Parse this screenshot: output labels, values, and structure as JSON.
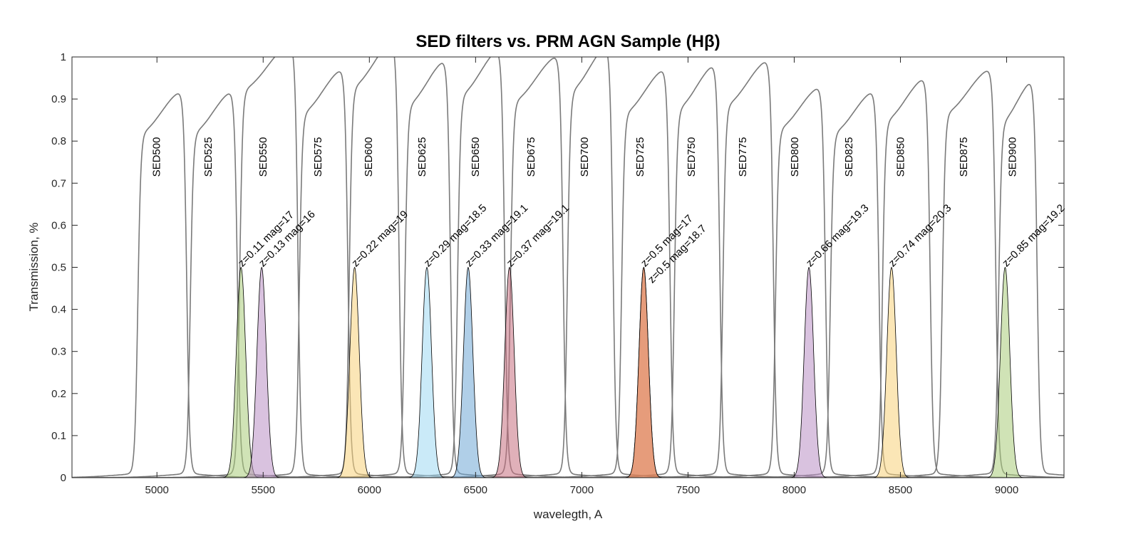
{
  "chart_data": {
    "type": "line",
    "title": "SED filters vs. PRM AGN Sample (Hβ)",
    "xlabel": "waveleth, A",
    "xlabel_text": "wavelegth, A",
    "ylabel": "Transmission, %",
    "xlim": [
      4600,
      9270
    ],
    "ylim": [
      0,
      1
    ],
    "xticks": [
      5000,
      5500,
      6000,
      6500,
      7000,
      7500,
      8000,
      8500,
      9000
    ],
    "yticks": [
      0,
      0.1,
      0.2,
      0.3,
      0.4,
      0.5,
      0.6,
      0.7,
      0.8,
      0.9,
      1
    ],
    "ytick_labels": [
      "0",
      "0.1",
      "0.2",
      "0.3",
      "0.4",
      "0.5",
      "0.6",
      "0.7",
      "0.8",
      "0.9",
      "1"
    ],
    "line_rest_wavelength": 4861,
    "filter_color": "#7a7a7a",
    "filters": [
      {
        "name": "SED500",
        "lo": 4910,
        "hi": 5140,
        "peak": 0.86
      },
      {
        "name": "SED525",
        "lo": 5157,
        "hi": 5379,
        "peak": 0.86
      },
      {
        "name": "SED550",
        "lo": 5389,
        "hi": 5664,
        "peak": 0.97
      },
      {
        "name": "SED575",
        "lo": 5670,
        "hi": 5899,
        "peak": 0.91
      },
      {
        "name": "SED600",
        "lo": 5905,
        "hi": 6140,
        "peak": 0.975
      },
      {
        "name": "SED625",
        "lo": 6167,
        "hi": 6382,
        "peak": 0.93
      },
      {
        "name": "SED650",
        "lo": 6415,
        "hi": 6637,
        "peak": 0.955
      },
      {
        "name": "SED675",
        "lo": 6664,
        "hi": 6912,
        "peak": 0.94
      },
      {
        "name": "SED700",
        "lo": 6932,
        "hi": 7147,
        "peak": 0.965
      },
      {
        "name": "SED725",
        "lo": 7187,
        "hi": 7415,
        "peak": 0.91
      },
      {
        "name": "SED750",
        "lo": 7436,
        "hi": 7650,
        "peak": 0.92
      },
      {
        "name": "SED775",
        "lo": 7664,
        "hi": 7902,
        "peak": 0.93
      },
      {
        "name": "SED800",
        "lo": 7912,
        "hi": 8147,
        "peak": 0.87
      },
      {
        "name": "SED825",
        "lo": 8170,
        "hi": 8399,
        "peak": 0.86
      },
      {
        "name": "SED850",
        "lo": 8415,
        "hi": 8640,
        "peak": 0.89
      },
      {
        "name": "SED875",
        "lo": 8697,
        "hi": 8949,
        "peak": 0.91
      },
      {
        "name": "SED900",
        "lo": 8962,
        "hi": 9144,
        "peak": 0.885
      }
    ],
    "objects": [
      {
        "z": 0.11,
        "mag": 17,
        "label": "z=0.11 mag=17",
        "peak": 0.5,
        "color": "#a9cc7a"
      },
      {
        "z": 0.13,
        "mag": 16,
        "label": "z=0.13 mag=16",
        "peak": 0.5,
        "color": "#b98fc4"
      },
      {
        "z": 0.22,
        "mag": 19,
        "label": "z=0.22 mag=19",
        "peak": 0.5,
        "color": "#f7d27a"
      },
      {
        "z": 0.29,
        "mag": 18.5,
        "label": "z=0.29 mag=18.5",
        "peak": 0.5,
        "color": "#9fd8f2"
      },
      {
        "z": 0.33,
        "mag": 19.1,
        "label": "z=0.33 mag=19.1",
        "peak": 0.5,
        "color": "#6fa8d6"
      },
      {
        "z": 0.37,
        "mag": 19.1,
        "label": "z=0.37 mag=19.1",
        "peak": 0.5,
        "color": "#c76f80"
      },
      {
        "z": 0.5,
        "mag": 17,
        "label": "z=0.5 mag=17",
        "peak": 0.5,
        "color": "#e0845a"
      },
      {
        "z": 0.5,
        "mag": 18.7,
        "label": "z=0.5 mag=18.7",
        "peak": 0.5,
        "color": "#e0845a"
      },
      {
        "z": 0.66,
        "mag": 19.3,
        "label": "z=0.66 mag=19.3",
        "peak": 0.5,
        "color": "#b98fc4"
      },
      {
        "z": 0.74,
        "mag": 20.3,
        "label": "z=0.74 mag=20.3",
        "peak": 0.5,
        "color": "#f7d27a"
      },
      {
        "z": 0.85,
        "mag": 19.2,
        "label": "z=0.85 mag=19.2",
        "peak": 0.5,
        "color": "#a9cc7a"
      }
    ]
  }
}
